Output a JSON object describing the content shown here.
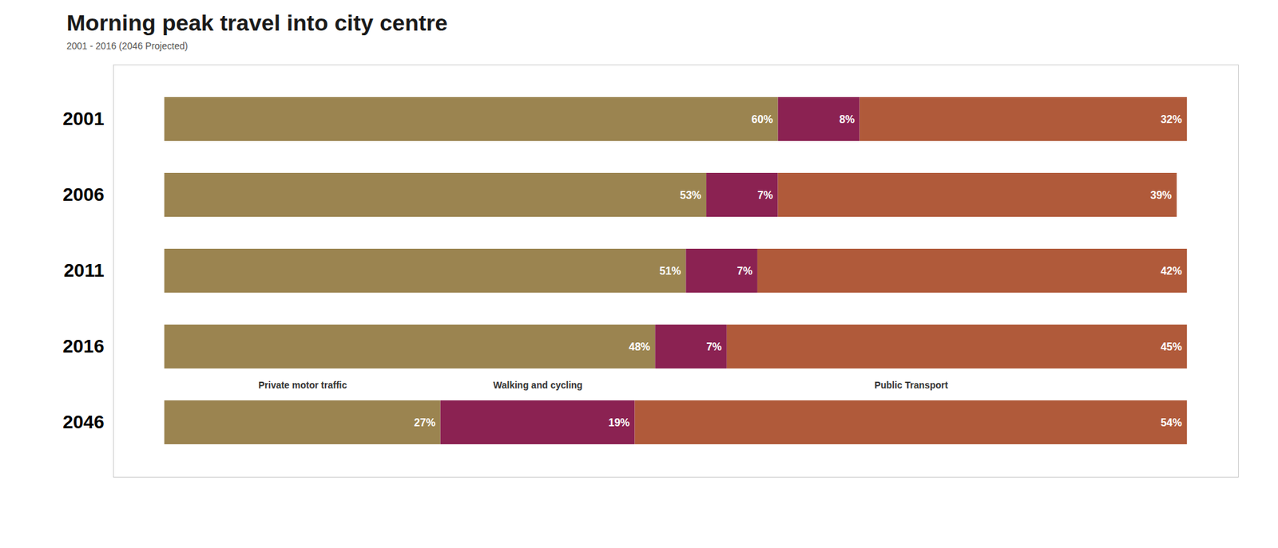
{
  "chart_data": {
    "type": "bar",
    "title": "Morning peak travel into city centre",
    "subtitle": "2001 - 2016  (2046 Projected)",
    "orientation": "horizontal",
    "stacked": true,
    "data_labels": true,
    "tick_labels": "y",
    "categories": [
      "2001",
      "2006",
      "2011",
      "2016",
      "2046"
    ],
    "xlim": [
      -5,
      105
    ],
    "series": [
      {
        "name": "Private motor traffic",
        "color": "#9b8450",
        "values": [
          60,
          53,
          51,
          48,
          27
        ],
        "value_labels": [
          "60%",
          "53%",
          "51%",
          "48%",
          "27%"
        ]
      },
      {
        "name": "Walking and cycling",
        "color": "#8b2252",
        "values": [
          8,
          7,
          7,
          7,
          19
        ],
        "value_labels": [
          "8%",
          "7%",
          "7%",
          "7%",
          "19%"
        ]
      },
      {
        "name": "Public Transport",
        "color": "#b05a3a",
        "values": [
          32,
          39,
          42,
          45,
          54
        ],
        "value_labels": [
          "32%",
          "39%",
          "42%",
          "45%",
          "54%"
        ]
      }
    ]
  }
}
